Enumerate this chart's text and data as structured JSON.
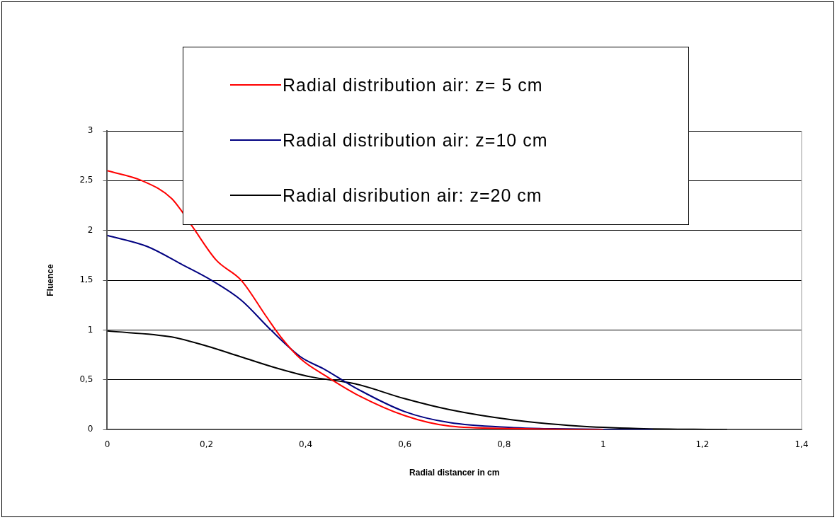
{
  "chart_data": {
    "type": "line",
    "xlabel": "Radial distancer in cm",
    "ylabel": "Fluence",
    "xlim": [
      0,
      1.4
    ],
    "xticks": [
      {
        "value": 0,
        "label": "0"
      },
      {
        "value": 0.2,
        "label": "0,2"
      },
      {
        "value": 0.4,
        "label": "0,4"
      },
      {
        "value": 0.6,
        "label": "0,6"
      },
      {
        "value": 0.8,
        "label": "0,8"
      },
      {
        "value": 1,
        "label": "1"
      },
      {
        "value": 1.2,
        "label": "1,2"
      },
      {
        "value": 1.4,
        "label": "1,4"
      }
    ],
    "ylim": [
      0,
      3
    ],
    "yticks": [
      {
        "value": 0,
        "label": "0"
      },
      {
        "value": 0.5,
        "label": "0,5"
      },
      {
        "value": 1,
        "label": "1"
      },
      {
        "value": 1.5,
        "label": "1,5"
      },
      {
        "value": 2,
        "label": "2"
      },
      {
        "value": 2.5,
        "label": "2,5"
      },
      {
        "value": 3,
        "label": "3"
      }
    ],
    "grid": "y",
    "legend": "top",
    "marker": "none",
    "series": [
      {
        "name": "Radial distribution air: z= 5 cm",
        "color": "#ff0000",
        "x": [
          0,
          0.07,
          0.13,
          0.17,
          0.22,
          0.27,
          0.32,
          0.35,
          0.39,
          0.44,
          0.5,
          0.6,
          0.69,
          0.82,
          0.9,
          1.0
        ],
        "values": [
          2.6,
          2.5,
          2.32,
          2.05,
          1.7,
          1.5,
          1.14,
          0.93,
          0.71,
          0.54,
          0.36,
          0.14,
          0.035,
          0.01,
          0.003,
          0
        ]
      },
      {
        "name": "Radial distribution air: z=10 cm",
        "color": "#000080",
        "x": [
          0,
          0.08,
          0.15,
          0.21,
          0.27,
          0.33,
          0.39,
          0.44,
          0.5,
          0.6,
          0.69,
          0.82,
          0.9,
          1.0,
          1.1
        ],
        "values": [
          1.95,
          1.84,
          1.66,
          1.5,
          1.3,
          1.0,
          0.73,
          0.6,
          0.42,
          0.18,
          0.07,
          0.02,
          0.008,
          0.002,
          0
        ]
      },
      {
        "name": "Radial disribution air: z=20 cm",
        "color": "#000000",
        "x": [
          0,
          0.13,
          0.2,
          0.27,
          0.34,
          0.41,
          0.5,
          0.6,
          0.69,
          0.82,
          0.95,
          1.07,
          1.15,
          1.25
        ],
        "values": [
          0.99,
          0.93,
          0.84,
          0.73,
          0.62,
          0.53,
          0.46,
          0.31,
          0.2,
          0.095,
          0.035,
          0.01,
          0.004,
          0
        ]
      }
    ]
  }
}
